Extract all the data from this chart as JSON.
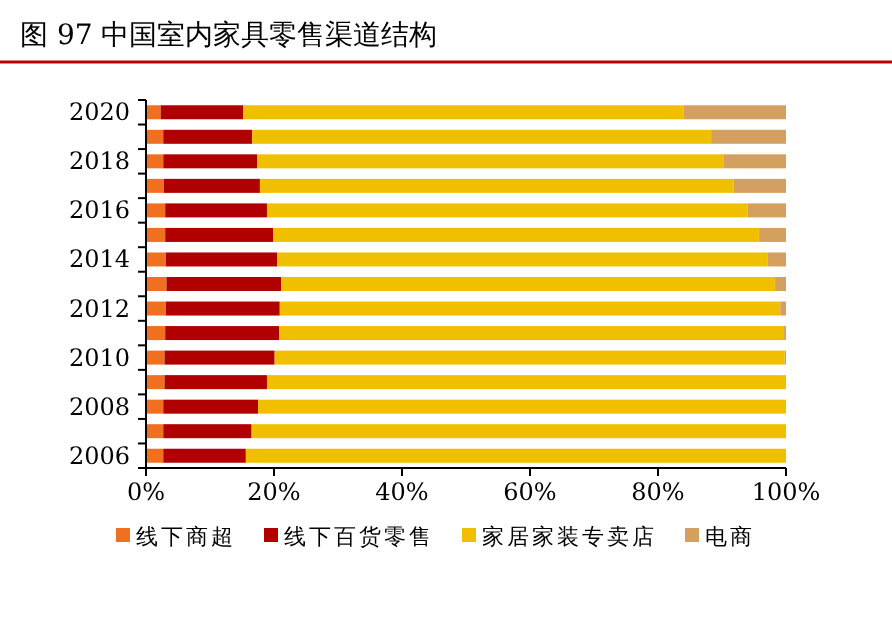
{
  "chart_data": {
    "type": "bar",
    "orientation": "horizontal",
    "stacked": true,
    "title": "图 97  中国室内家具零售渠道结构",
    "categories": [
      "2020",
      null,
      "2018",
      null,
      "2016",
      null,
      "2014",
      null,
      "2012",
      null,
      "2010",
      null,
      "2008",
      null,
      "2006"
    ],
    "series": [
      {
        "name": "线下商超",
        "color": "#f07020",
        "values": [
          2.3,
          2.7,
          2.7,
          2.8,
          3.0,
          3.0,
          3.1,
          3.2,
          3.1,
          3.0,
          2.9,
          2.9,
          2.7,
          2.7,
          2.7
        ]
      },
      {
        "name": "线下百货零售",
        "color": "#b00000",
        "values": [
          12.9,
          13.9,
          14.7,
          15.0,
          15.9,
          16.9,
          17.4,
          17.9,
          17.8,
          17.8,
          17.2,
          16.0,
          14.8,
          13.8,
          12.9
        ]
      },
      {
        "name": "家居家装专卖店",
        "color": "#f0c000",
        "values": [
          68.8,
          71.7,
          72.8,
          74.0,
          75.1,
          75.9,
          76.6,
          77.2,
          78.2,
          78.9,
          79.7,
          81.1,
          82.5,
          83.5,
          84.4
        ]
      },
      {
        "name": "电商",
        "color": "#d4a060",
        "values": [
          16.0,
          11.7,
          9.8,
          8.2,
          6.0,
          4.2,
          2.9,
          1.7,
          0.9,
          0.3,
          0.2,
          0,
          0,
          0,
          0
        ]
      }
    ],
    "xlim": [
      0,
      100
    ],
    "xticks": [
      {
        "value": 0,
        "label": "0%"
      },
      {
        "value": 20,
        "label": "20%"
      },
      {
        "value": 40,
        "label": "40%"
      },
      {
        "value": 60,
        "label": "60%"
      },
      {
        "value": 80,
        "label": "80%"
      },
      {
        "value": 100,
        "label": "100%"
      }
    ],
    "legend": "bottom"
  }
}
